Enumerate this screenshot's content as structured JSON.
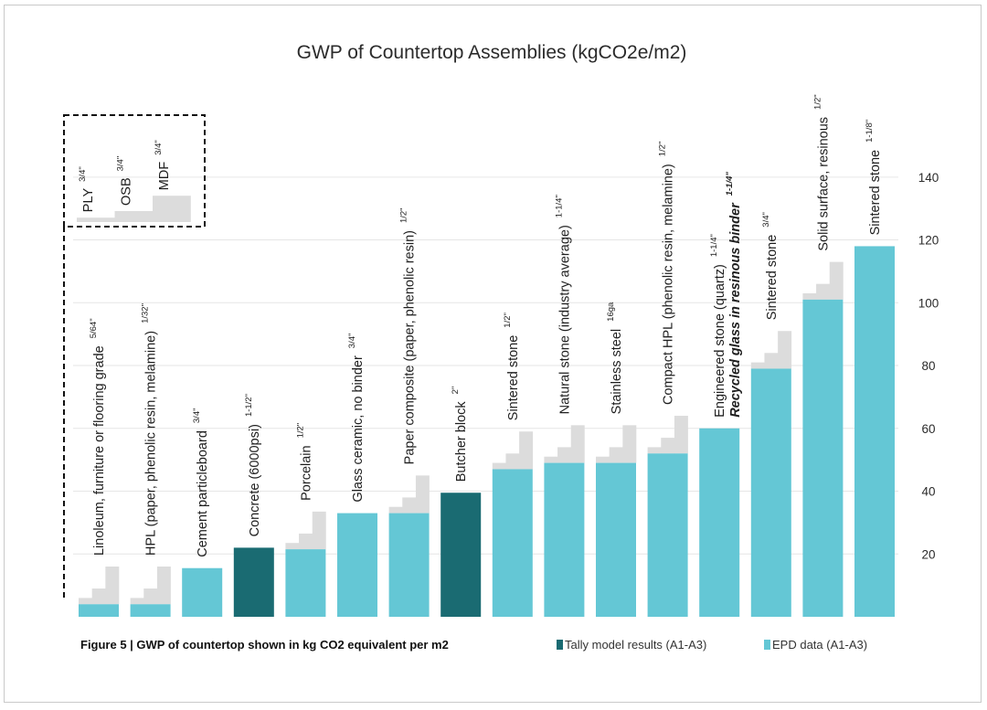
{
  "chart_data": {
    "type": "bar",
    "title": "GWP of Countertop Assemblies (kgCO2e/m2)",
    "caption": "Figure 5 | GWP of countertop shown in kg CO2 equivalent per m2",
    "ylim": [
      0,
      150
    ],
    "yticks": [
      20,
      40,
      60,
      80,
      100,
      120,
      140
    ],
    "legend": [
      {
        "name": "Tally model results (A1-A3)",
        "color": "#1a6b72"
      },
      {
        "name": "EPD data (A1-A3)",
        "color": "#64c7d5"
      }
    ],
    "colors": {
      "epd": "#64c7d5",
      "tally": "#1a6b72",
      "substrate": "#dcdcdc",
      "dash": "#111111"
    },
    "substrate_inset": {
      "items": [
        {
          "label": "PLY",
          "thickness": "3/4\"",
          "value": 2
        },
        {
          "label": "OSB",
          "thickness": "3/4\"",
          "value": 5
        },
        {
          "label": "MDF",
          "thickness": "3/4\"",
          "value": 12
        }
      ]
    },
    "categories": [
      {
        "label": "Linoleum, furniture or flooring grade",
        "thickness": "5/64\"",
        "value": 4,
        "source": "epd",
        "substrates": [
          2,
          5,
          12
        ]
      },
      {
        "label": "HPL (paper, phenolic resin, melamine)",
        "thickness": "1/32\"",
        "value": 4,
        "source": "epd",
        "substrates": [
          2,
          5,
          12
        ]
      },
      {
        "label": "Cement particleboard",
        "thickness": "3/4\"",
        "value": 15.5,
        "source": "epd",
        "substrates": []
      },
      {
        "label": "Concrete (6000psi)",
        "thickness": "1-1/2\"",
        "value": 22,
        "source": "tally",
        "substrates": []
      },
      {
        "label": "Porcelain",
        "thickness": "1/2\"",
        "value": 21.5,
        "source": "epd",
        "substrates": [
          2,
          5,
          12
        ]
      },
      {
        "label": "Glass ceramic, no binder",
        "thickness": "3/4\"",
        "value": 33,
        "source": "epd",
        "substrates": []
      },
      {
        "label": "Paper composite (paper, phenolic resin)",
        "thickness": "1/2\"",
        "value": 33,
        "source": "epd",
        "substrates": [
          2,
          5,
          12
        ]
      },
      {
        "label": "Butcher block",
        "thickness": "2\"",
        "value": 39.5,
        "source": "tally",
        "substrates": []
      },
      {
        "label": "Sintered stone",
        "thickness": "1/2\"",
        "value": 47,
        "source": "epd",
        "substrates": [
          2,
          5,
          12
        ]
      },
      {
        "label": "Natural stone (industry average)",
        "thickness": "1-1/4\"",
        "value": 49,
        "source": "epd",
        "substrates": [
          2,
          5,
          12
        ]
      },
      {
        "label": "Stainless steel",
        "thickness": "16ga",
        "value": 49,
        "source": "epd",
        "substrates": [
          2,
          5,
          12
        ]
      },
      {
        "label": "Compact HPL (phenolic resin, melamine)",
        "thickness": "1/2\"",
        "value": 52,
        "source": "epd",
        "substrates": [
          2,
          5,
          12
        ]
      },
      {
        "label": "Engineered stone (quartz)",
        "thickness": "1-1/4\"",
        "label2": "Recycled glass in resinous binder",
        "thickness2": "1-1/4\"",
        "value": 60,
        "source": "epd",
        "substrates": []
      },
      {
        "label": "Sintered stone",
        "thickness": "3/4\"",
        "value": 79,
        "source": "epd",
        "substrates": [
          2,
          5,
          12
        ]
      },
      {
        "label": "Solid surface, resinous",
        "thickness": "1/2\"",
        "value": 101,
        "source": "epd",
        "substrates": [
          2,
          5,
          12
        ]
      },
      {
        "label": "Sintered stone",
        "thickness": "1-1/8\"",
        "value": 118,
        "source": "epd",
        "substrates": []
      }
    ]
  }
}
